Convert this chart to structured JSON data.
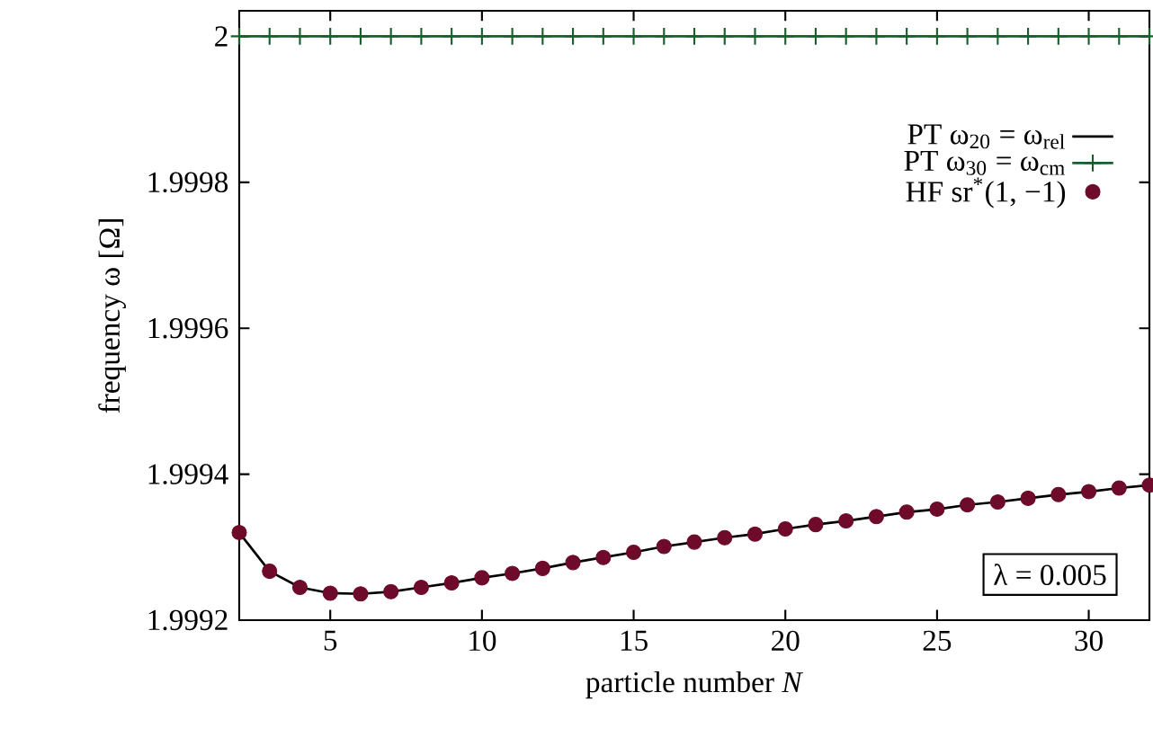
{
  "chart_data": {
    "type": "line",
    "xlabel": "particle number *N*",
    "ylabel": "frequency ω [Ω]",
    "x": [
      2,
      3,
      4,
      5,
      6,
      7,
      8,
      9,
      10,
      11,
      12,
      13,
      14,
      15,
      16,
      17,
      18,
      19,
      20,
      21,
      22,
      23,
      24,
      25,
      26,
      27,
      28,
      29,
      30,
      31,
      32
    ],
    "series": [
      {
        "name": "PT ω$_{20}$ = ω$_{rel}$",
        "marker": "none",
        "color": "#000000",
        "values": [
          1.99932,
          1.999267,
          1.999245,
          1.999237,
          1.999236,
          1.999239,
          1.999245,
          1.999251,
          1.999258,
          1.999264,
          1.999271,
          1.999279,
          1.999286,
          1.999293,
          1.999301,
          1.999307,
          1.999313,
          1.999318,
          1.999325,
          1.999331,
          1.999336,
          1.999342,
          1.999348,
          1.999352,
          1.999358,
          1.999362,
          1.999367,
          1.999372,
          1.999376,
          1.999381,
          1.999385
        ]
      },
      {
        "name": "PT ω$_{30}$ = ω$_{cm}$",
        "marker": "cross",
        "color": "#1a5e2e",
        "values": [
          2,
          2,
          2,
          2,
          2,
          2,
          2,
          2,
          2,
          2,
          2,
          2,
          2,
          2,
          2,
          2,
          2,
          2,
          2,
          2,
          2,
          2,
          2,
          2,
          2,
          2,
          2,
          2,
          2,
          2,
          2
        ]
      },
      {
        "name": "HF sr$^{*}$(1, −1)",
        "type": "scatter",
        "marker": "circle",
        "color": "#6e0a2a",
        "values": [
          1.99932,
          1.999267,
          1.999245,
          1.999237,
          1.999236,
          1.999239,
          1.999245,
          1.999251,
          1.999258,
          1.999264,
          1.999271,
          1.999279,
          1.999286,
          1.999293,
          1.999301,
          1.999307,
          1.999313,
          1.999318,
          1.999325,
          1.999331,
          1.999336,
          1.999342,
          1.999348,
          1.999352,
          1.999358,
          1.999362,
          1.999367,
          1.999372,
          1.999376,
          1.999381,
          1.999385
        ]
      }
    ],
    "xlim": [
      2,
      32
    ],
    "ylim": [
      1.9992,
      2.000035
    ],
    "xticks": [
      5,
      10,
      15,
      20,
      25,
      30
    ],
    "yticks": [
      1.9992,
      1.9994,
      1.9996,
      1.9998,
      2
    ],
    "legend": "top right",
    "annotations": [
      "λ = 0.005"
    ]
  }
}
